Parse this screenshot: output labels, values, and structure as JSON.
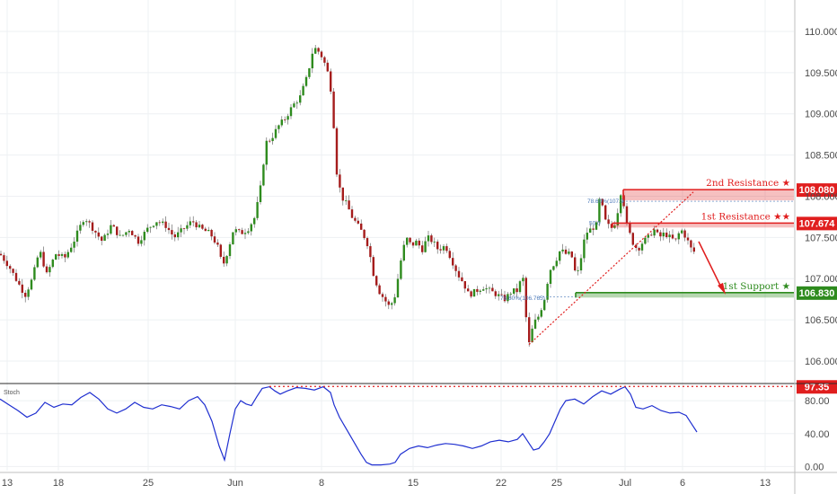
{
  "chart_data": {
    "type": "candlestick",
    "price_axis": {
      "ticks": [
        106.0,
        106.5,
        107.0,
        107.5,
        108.0,
        108.5,
        109.0,
        109.5,
        110.0
      ],
      "tick_labels": [
        "106.000",
        "106.500",
        "107.000",
        "107.500",
        "108.000",
        "108.500",
        "109.000",
        "109.500",
        "110.000"
      ],
      "range": [
        105.76,
        110.25
      ]
    },
    "x_axis": {
      "tick_labels": [
        "13",
        "18",
        "25",
        "Jun",
        "8",
        "15",
        "22",
        "25",
        "Jul",
        "6",
        "13"
      ]
    },
    "price_path": [
      [
        0,
        107.3
      ],
      [
        10,
        107.15
      ],
      [
        20,
        106.95
      ],
      [
        28,
        106.8
      ],
      [
        36,
        107.0
      ],
      [
        44,
        107.35
      ],
      [
        52,
        107.05
      ],
      [
        62,
        107.3
      ],
      [
        72,
        107.25
      ],
      [
        82,
        107.45
      ],
      [
        94,
        107.75
      ],
      [
        104,
        107.6
      ],
      [
        114,
        107.45
      ],
      [
        124,
        107.65
      ],
      [
        134,
        107.5
      ],
      [
        144,
        107.6
      ],
      [
        154,
        107.45
      ],
      [
        164,
        107.6
      ],
      [
        174,
        107.7
      ],
      [
        184,
        107.65
      ],
      [
        194,
        107.5
      ],
      [
        204,
        107.6
      ],
      [
        214,
        107.7
      ],
      [
        224,
        107.6
      ],
      [
        234,
        107.55
      ],
      [
        242,
        107.4
      ],
      [
        248,
        107.15
      ],
      [
        254,
        107.35
      ],
      [
        260,
        107.6
      ],
      [
        268,
        107.55
      ],
      [
        276,
        107.6
      ],
      [
        284,
        107.75
      ],
      [
        290,
        108.1
      ],
      [
        296,
        108.65
      ],
      [
        302,
        108.7
      ],
      [
        310,
        108.85
      ],
      [
        318,
        108.95
      ],
      [
        326,
        109.1
      ],
      [
        334,
        109.2
      ],
      [
        342,
        109.45
      ],
      [
        348,
        109.75
      ],
      [
        352,
        109.8
      ],
      [
        358,
        109.7
      ],
      [
        364,
        109.55
      ],
      [
        370,
        109.2
      ],
      [
        374,
        108.35
      ],
      [
        380,
        108.0
      ],
      [
        386,
        107.9
      ],
      [
        392,
        107.75
      ],
      [
        398,
        107.65
      ],
      [
        404,
        107.55
      ],
      [
        410,
        107.4
      ],
      [
        416,
        107.05
      ],
      [
        422,
        106.85
      ],
      [
        428,
        106.75
      ],
      [
        434,
        106.65
      ],
      [
        440,
        106.8
      ],
      [
        446,
        107.2
      ],
      [
        452,
        107.5
      ],
      [
        458,
        107.4
      ],
      [
        464,
        107.45
      ],
      [
        470,
        107.35
      ],
      [
        476,
        107.5
      ],
      [
        482,
        107.45
      ],
      [
        488,
        107.35
      ],
      [
        496,
        107.4
      ],
      [
        504,
        107.2
      ],
      [
        510,
        107.05
      ],
      [
        516,
        106.95
      ],
      [
        522,
        106.8
      ],
      [
        530,
        106.85
      ],
      [
        538,
        106.9
      ],
      [
        546,
        106.85
      ],
      [
        554,
        106.8
      ],
      [
        562,
        106.75
      ],
      [
        570,
        106.85
      ],
      [
        576,
        106.85
      ],
      [
        582,
        107.05
      ],
      [
        586,
        106.5
      ],
      [
        589,
        106.2
      ],
      [
        594,
        106.45
      ],
      [
        600,
        106.55
      ],
      [
        606,
        106.75
      ],
      [
        612,
        107.1
      ],
      [
        618,
        107.2
      ],
      [
        624,
        107.35
      ],
      [
        630,
        107.3
      ],
      [
        636,
        107.3
      ],
      [
        642,
        107.0
      ],
      [
        646,
        107.2
      ],
      [
        652,
        107.55
      ],
      [
        658,
        107.6
      ],
      [
        664,
        107.65
      ],
      [
        668,
        108.0
      ],
      [
        674,
        107.7
      ],
      [
        680,
        107.6
      ],
      [
        686,
        107.7
      ],
      [
        692,
        108.1
      ],
      [
        698,
        107.65
      ],
      [
        704,
        107.45
      ],
      [
        710,
        107.35
      ],
      [
        716,
        107.45
      ],
      [
        722,
        107.5
      ],
      [
        728,
        107.6
      ],
      [
        734,
        107.5
      ],
      [
        740,
        107.55
      ],
      [
        746,
        107.5
      ],
      [
        752,
        107.45
      ],
      [
        758,
        107.6
      ],
      [
        764,
        107.5
      ],
      [
        770,
        107.35
      ],
      [
        776,
        107.3
      ]
    ],
    "stochastic": {
      "label": "Stoch",
      "ticks": [
        0,
        40,
        80
      ],
      "tick_labels": [
        "0.00",
        "40.00",
        "80.00"
      ],
      "range": [
        -5,
        102
      ],
      "path": [
        [
          0,
          82
        ],
        [
          10,
          75
        ],
        [
          20,
          68
        ],
        [
          30,
          60
        ],
        [
          40,
          65
        ],
        [
          50,
          78
        ],
        [
          60,
          72
        ],
        [
          70,
          76
        ],
        [
          80,
          75
        ],
        [
          90,
          84
        ],
        [
          100,
          90
        ],
        [
          110,
          82
        ],
        [
          120,
          70
        ],
        [
          130,
          65
        ],
        [
          140,
          70
        ],
        [
          150,
          78
        ],
        [
          160,
          72
        ],
        [
          170,
          70
        ],
        [
          180,
          75
        ],
        [
          190,
          73
        ],
        [
          200,
          70
        ],
        [
          210,
          80
        ],
        [
          220,
          85
        ],
        [
          228,
          75
        ],
        [
          236,
          55
        ],
        [
          244,
          25
        ],
        [
          250,
          8
        ],
        [
          256,
          40
        ],
        [
          262,
          70
        ],
        [
          268,
          80
        ],
        [
          274,
          76
        ],
        [
          280,
          74
        ],
        [
          286,
          85
        ],
        [
          292,
          95
        ],
        [
          300,
          97
        ],
        [
          306,
          92
        ],
        [
          312,
          88
        ],
        [
          320,
          92
        ],
        [
          330,
          96
        ],
        [
          340,
          95
        ],
        [
          350,
          93
        ],
        [
          360,
          97
        ],
        [
          368,
          90
        ],
        [
          372,
          75
        ],
        [
          378,
          60
        ],
        [
          386,
          45
        ],
        [
          394,
          30
        ],
        [
          402,
          15
        ],
        [
          408,
          5
        ],
        [
          414,
          2
        ],
        [
          424,
          2
        ],
        [
          434,
          3
        ],
        [
          440,
          5
        ],
        [
          446,
          15
        ],
        [
          456,
          22
        ],
        [
          466,
          25
        ],
        [
          476,
          23
        ],
        [
          486,
          26
        ],
        [
          496,
          28
        ],
        [
          506,
          27
        ],
        [
          516,
          25
        ],
        [
          526,
          22
        ],
        [
          536,
          25
        ],
        [
          546,
          30
        ],
        [
          556,
          32
        ],
        [
          566,
          30
        ],
        [
          576,
          33
        ],
        [
          582,
          40
        ],
        [
          588,
          30
        ],
        [
          594,
          20
        ],
        [
          600,
          22
        ],
        [
          606,
          30
        ],
        [
          612,
          40
        ],
        [
          618,
          55
        ],
        [
          624,
          70
        ],
        [
          630,
          80
        ],
        [
          640,
          82
        ],
        [
          650,
          76
        ],
        [
          660,
          85
        ],
        [
          670,
          92
        ],
        [
          680,
          88
        ],
        [
          690,
          94
        ],
        [
          696,
          97
        ],
        [
          702,
          88
        ],
        [
          708,
          72
        ],
        [
          716,
          70
        ],
        [
          726,
          74
        ],
        [
          736,
          68
        ],
        [
          746,
          65
        ],
        [
          756,
          66
        ],
        [
          764,
          62
        ],
        [
          770,
          52
        ],
        [
          776,
          42
        ]
      ]
    },
    "levels": [
      {
        "name": "2nd Resistance",
        "stars": "★",
        "value": 108.08,
        "zone": [
          107.95,
          108.08
        ],
        "label": "108.080",
        "color": "#e01e1e"
      },
      {
        "name": "1st Resistance",
        "stars": "★★",
        "value": 107.674,
        "zone": [
          107.62,
          107.674
        ],
        "label": "107.674",
        "color": "#e01e1e"
      },
      {
        "name": "1st Support",
        "stars": "★",
        "value": 106.83,
        "zone": [
          106.77,
          106.83
        ],
        "label": "106.830",
        "color": "#2e8b1e"
      }
    ],
    "stoch_level": {
      "value": 97.35,
      "label": "97.35",
      "color": "#e01e1e"
    },
    "annotations": {
      "fib_top": "78.60%(107.9",
      "fib_mid": "50.0",
      "fib_low": "78.60%(106.765)"
    },
    "colors": {
      "bull": "#2e8b1e",
      "bear": "#a51c1c",
      "stoch_line": "#1f2fd0",
      "resistance": "#e01e1e",
      "support": "#2e8b1e"
    }
  }
}
